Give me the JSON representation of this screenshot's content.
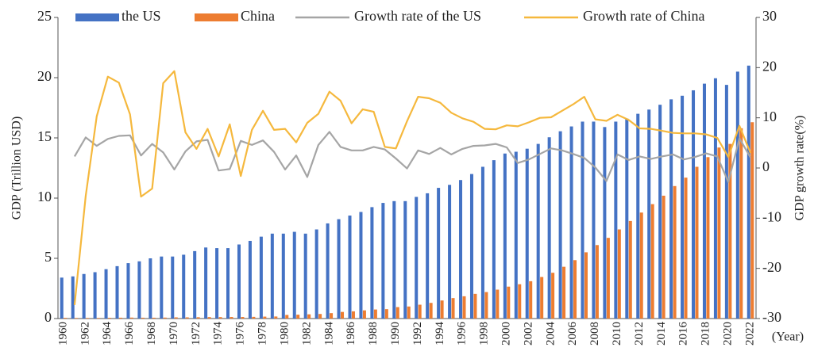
{
  "chart_data": {
    "type": "combo",
    "y_label": "GDP (Trillion USD)",
    "y2_label": "GDP growth rate(%)",
    "x_label": "(Year)",
    "legend": "top",
    "categories": [
      "1960",
      null,
      "1962",
      null,
      "1964",
      null,
      "1966",
      null,
      "1968",
      null,
      "1970",
      null,
      "1972",
      null,
      "1974",
      null,
      "1976",
      null,
      "1978",
      null,
      "1980",
      null,
      "1982",
      null,
      "1984",
      null,
      "1986",
      null,
      "1988",
      null,
      "1990",
      null,
      "1992",
      null,
      "1994",
      null,
      "1996",
      null,
      "1998",
      null,
      "2000",
      null,
      "2002",
      null,
      "2004",
      null,
      "2006",
      null,
      "2008",
      null,
      "2010",
      null,
      "2012",
      null,
      "2014",
      null,
      "2016",
      null,
      "2018",
      null,
      "2020",
      null,
      "2022"
    ],
    "ylim": [
      0,
      25
    ],
    "yticks": [
      0,
      5,
      10,
      15,
      20,
      25
    ],
    "y2lim": [
      -30,
      30
    ],
    "y2ticks": [
      -30,
      -20,
      -10,
      0,
      10,
      20,
      30
    ],
    "series": [
      {
        "name": "the US",
        "type": "bar",
        "color": "#4472c4",
        "values": [
          3.4,
          3.5,
          3.7,
          3.85,
          4.1,
          4.35,
          4.6,
          4.75,
          5.0,
          5.15,
          5.15,
          5.3,
          5.6,
          5.9,
          5.85,
          5.85,
          6.15,
          6.45,
          6.8,
          7.05,
          7.05,
          7.2,
          7.05,
          7.4,
          7.9,
          8.25,
          8.55,
          8.85,
          9.25,
          9.6,
          9.75,
          9.75,
          10.1,
          10.4,
          10.85,
          11.1,
          11.5,
          12.0,
          12.6,
          13.15,
          13.7,
          13.85,
          14.1,
          14.5,
          15.05,
          15.55,
          15.95,
          16.35,
          16.35,
          15.9,
          16.35,
          16.6,
          17.0,
          17.35,
          17.75,
          18.2,
          18.5,
          18.95,
          19.5,
          19.95,
          19.4,
          20.5,
          21.0
        ]
      },
      {
        "name": "China",
        "type": "bar",
        "color": "#ed7d31",
        "values": [
          0.06,
          0.05,
          0.05,
          0.05,
          0.06,
          0.07,
          0.08,
          0.07,
          0.07,
          0.08,
          0.1,
          0.1,
          0.11,
          0.12,
          0.12,
          0.13,
          0.13,
          0.14,
          0.16,
          0.17,
          0.3,
          0.32,
          0.35,
          0.38,
          0.45,
          0.55,
          0.6,
          0.68,
          0.75,
          0.78,
          0.95,
          1.0,
          1.15,
          1.3,
          1.5,
          1.7,
          1.85,
          2.05,
          2.2,
          2.4,
          2.65,
          2.85,
          3.1,
          3.45,
          3.8,
          4.3,
          4.85,
          5.5,
          6.1,
          6.7,
          7.4,
          8.1,
          8.8,
          9.5,
          10.2,
          11.0,
          11.7,
          12.6,
          13.4,
          14.2,
          14.5,
          15.8,
          16.3
        ]
      },
      {
        "name": "Growth rate of the US",
        "type": "line",
        "axis": "y2",
        "color": "#a5a5a5",
        "values": [
          null,
          2.3,
          6.1,
          4.4,
          5.8,
          6.4,
          6.5,
          2.5,
          4.8,
          3.1,
          -0.3,
          3.3,
          5.3,
          5.6,
          -0.5,
          -0.2,
          5.4,
          4.6,
          5.5,
          3.2,
          -0.3,
          2.5,
          -1.8,
          4.6,
          7.2,
          4.2,
          3.5,
          3.5,
          4.2,
          3.7,
          1.9,
          -0.1,
          3.5,
          2.8,
          4.0,
          2.7,
          3.8,
          4.4,
          4.5,
          4.8,
          4.1,
          1.0,
          1.7,
          2.8,
          3.9,
          3.5,
          2.8,
          2.0,
          0.1,
          -2.6,
          2.7,
          1.6,
          2.3,
          1.8,
          2.3,
          2.7,
          1.7,
          2.2,
          2.9,
          2.3,
          -2.8,
          5.9,
          2.1
        ]
      },
      {
        "name": "Growth rate of China",
        "type": "line",
        "axis": "y2",
        "color": "#f5b83d",
        "values": [
          null,
          -27.3,
          -5.6,
          10.3,
          18.2,
          17.0,
          10.7,
          -5.7,
          -4.1,
          16.9,
          19.3,
          7.1,
          3.8,
          7.8,
          2.3,
          8.7,
          -1.6,
          7.6,
          11.4,
          7.6,
          7.8,
          5.1,
          9.0,
          10.8,
          15.2,
          13.4,
          8.9,
          11.7,
          11.2,
          4.2,
          3.9,
          9.3,
          14.2,
          13.9,
          13.0,
          11.0,
          9.9,
          9.2,
          7.8,
          7.7,
          8.5,
          8.3,
          9.1,
          10.0,
          10.1,
          11.4,
          12.7,
          14.2,
          9.7,
          9.4,
          10.6,
          9.6,
          7.9,
          7.8,
          7.4,
          7.0,
          6.9,
          6.9,
          6.7,
          6.0,
          2.2,
          8.4,
          3.0
        ]
      }
    ]
  }
}
